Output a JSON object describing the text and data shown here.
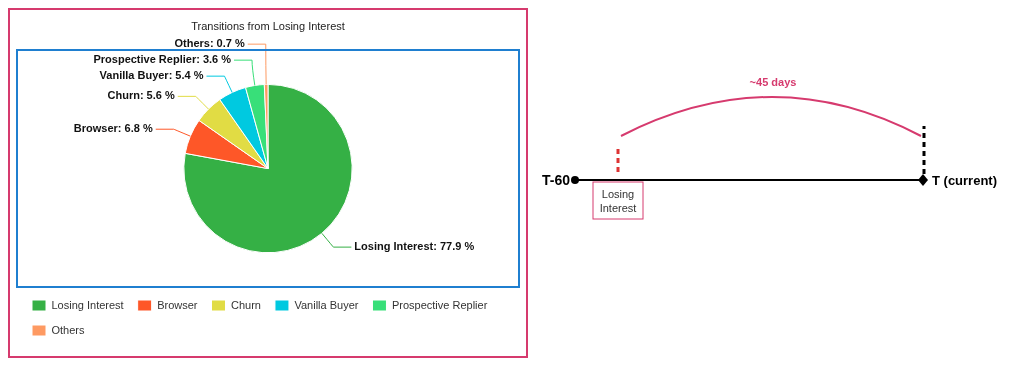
{
  "chart_data": {
    "type": "pie",
    "title": "Transitions from Losing Interest",
    "categories": [
      "Losing Interest",
      "Browser",
      "Churn",
      "Vanilla Buyer",
      "Prospective Replier",
      "Others"
    ],
    "values": [
      77.9,
      6.8,
      5.6,
      5.4,
      3.6,
      0.7
    ],
    "colors": [
      "#35b045",
      "#fe5728",
      "#e1dc44",
      "#00c9e0",
      "#38df79",
      "#fe9a62"
    ],
    "value_labels": [
      "Losing Interest: 77.9 %",
      "Browser: 6.8 %",
      "Churn: 5.6 %",
      "Vanilla Buyer: 5.4 %",
      "Prospective Replier: 3.6 %",
      "Others: 0.7 %"
    ],
    "legend": "bottom",
    "annotations": [
      "T-60",
      "T (current)",
      "Losing Interest",
      "~45 days"
    ]
  }
}
